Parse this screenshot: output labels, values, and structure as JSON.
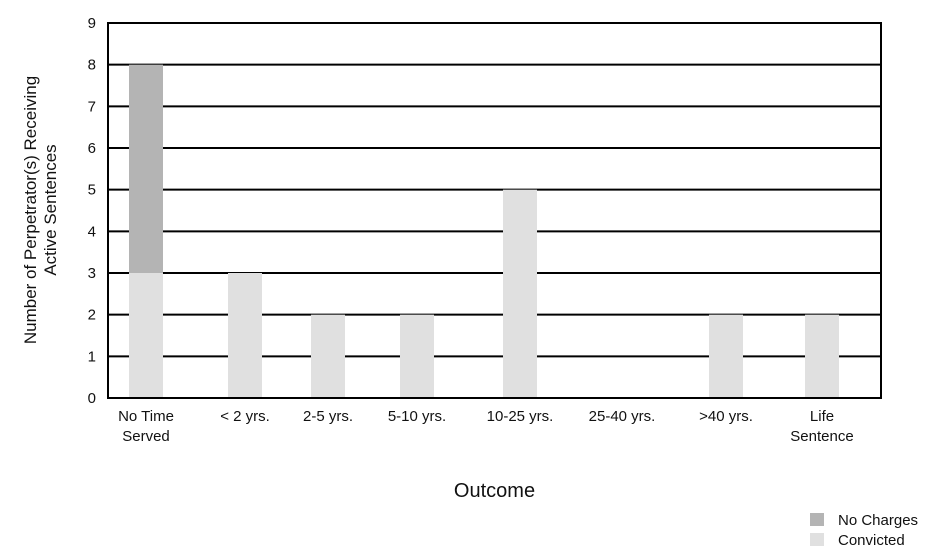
{
  "chart_data": {
    "type": "bar",
    "stacked": true,
    "categories": [
      [
        "No Time",
        "Served"
      ],
      [
        "< 2 yrs."
      ],
      [
        "2-5 yrs."
      ],
      [
        "5-10 yrs."
      ],
      [
        "10-25 yrs."
      ],
      [
        "25-40 yrs."
      ],
      [
        ">40 yrs."
      ],
      [
        "Life",
        "Sentence"
      ]
    ],
    "series": [
      {
        "name": "Convicted",
        "color": "#e0e0e0",
        "values": [
          3,
          3,
          2,
          2,
          5,
          0,
          2,
          2
        ]
      },
      {
        "name": "No Charges",
        "color": "#b4b4b4",
        "values": [
          5,
          0,
          0,
          0,
          0,
          0,
          0,
          0
        ]
      }
    ],
    "legend_order": [
      "No Charges",
      "Convicted"
    ],
    "xlabel": "Outcome",
    "ylabel": [
      "Number of Perpetrator(s) Receiving",
      "Active Sentences"
    ],
    "ylim": [
      0,
      9
    ],
    "yticks": [
      0,
      1,
      2,
      3,
      4,
      5,
      6,
      7,
      8,
      9
    ],
    "grid": true,
    "legend_position": "bottom-right"
  }
}
